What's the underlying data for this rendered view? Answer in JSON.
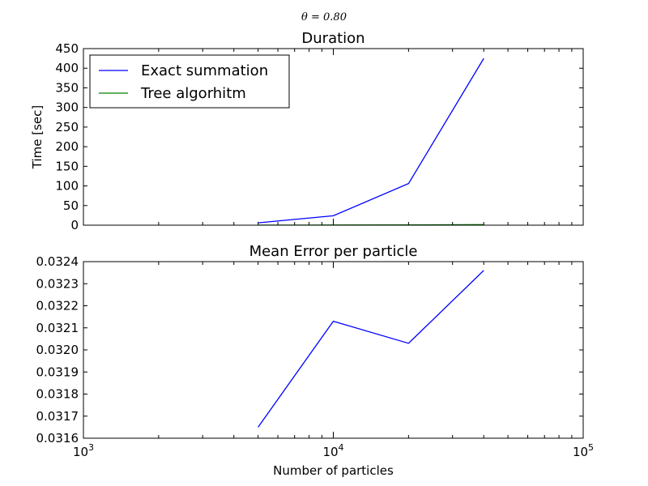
{
  "figure": {
    "suptitle": "θ = 0.80"
  },
  "chart_data": [
    {
      "type": "line",
      "title": "Duration",
      "xlabel": "",
      "ylabel": "Time [sec]",
      "xscale": "log",
      "xlim": [
        1000,
        100000
      ],
      "ylim": [
        0,
        450
      ],
      "yticks": [
        0,
        50,
        100,
        150,
        200,
        250,
        300,
        350,
        400,
        450
      ],
      "ytick_labels": [
        "0",
        "50",
        "100",
        "150",
        "200",
        "250",
        "300",
        "350",
        "400",
        "450"
      ],
      "legend": {
        "position": "upper-left"
      },
      "series": [
        {
          "name": "Exact summation",
          "color": "#0000ff",
          "x": [
            5000,
            10000,
            20000,
            40000
          ],
          "y": [
            6,
            24,
            106,
            425
          ]
        },
        {
          "name": "Tree algorhitm",
          "color": "#008000",
          "x": [
            5000,
            10000,
            20000,
            40000
          ],
          "y": [
            0.2,
            0.4,
            0.8,
            1.5
          ]
        }
      ]
    },
    {
      "type": "line",
      "title": "Mean Error per particle",
      "xlabel": "Number of particles",
      "ylabel": "",
      "xscale": "log",
      "xlim": [
        1000,
        100000
      ],
      "xticks": [
        1000,
        10000,
        100000
      ],
      "xtick_labels": [
        {
          "base": "10",
          "exp": "3"
        },
        {
          "base": "10",
          "exp": "4"
        },
        {
          "base": "10",
          "exp": "5"
        }
      ],
      "ylim": [
        0.0316,
        0.0324
      ],
      "yticks": [
        0.0316,
        0.0317,
        0.0318,
        0.0319,
        0.032,
        0.0321,
        0.0322,
        0.0323,
        0.0324
      ],
      "ytick_labels": [
        "0.0316",
        "0.0317",
        "0.0318",
        "0.0319",
        "0.0320",
        "0.0321",
        "0.0322",
        "0.0323",
        "0.0324"
      ],
      "series": [
        {
          "color": "#0000ff",
          "x": [
            5000,
            10000,
            20000,
            40000
          ],
          "y": [
            0.03165,
            0.03213,
            0.03203,
            0.03236
          ]
        }
      ]
    }
  ]
}
